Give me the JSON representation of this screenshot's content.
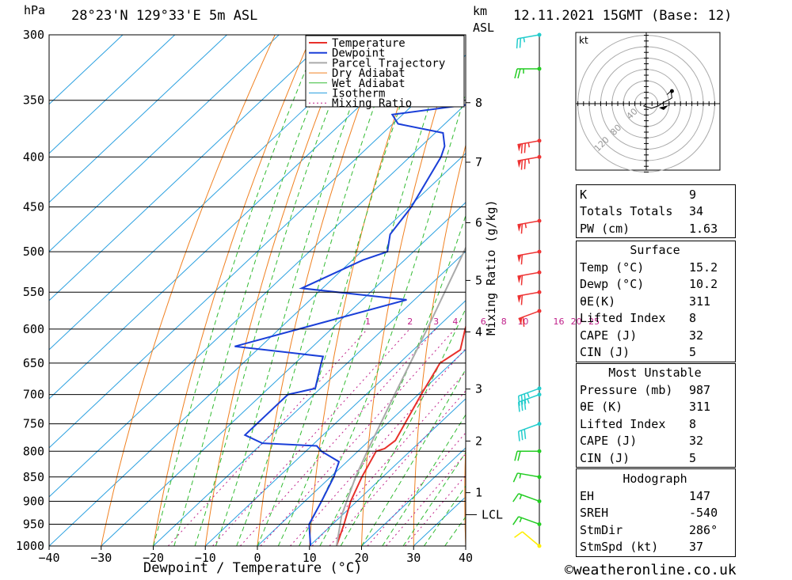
{
  "header": {
    "pressure_unit": "hPa",
    "location": "28°23'N  129°33'E  5m  ASL",
    "km_label": "km",
    "asl_label": "ASL",
    "datetime": "12.11.2021  15GMT  (Base: 12)"
  },
  "footer": {
    "copyright": "©weatheronline.co.uk"
  },
  "chart_data": {
    "type": "line",
    "title": "28°23'N 129°33'E 5m ASL",
    "xlabel": "Dewpoint / Temperature (°C)",
    "ylabel": "hPa",
    "y2label": "Mixing Ratio (g/kg)",
    "xlim": [
      -40,
      40
    ],
    "ylim": [
      1000,
      300
    ],
    "x_ticks": [
      "-40",
      "-30",
      "-20",
      "-10",
      "0",
      "10",
      "20",
      "30",
      "40"
    ],
    "y_ticks": [
      "300",
      "350",
      "400",
      "450",
      "500",
      "550",
      "600",
      "650",
      "700",
      "750",
      "800",
      "850",
      "900",
      "950",
      "1000"
    ],
    "km_ticks": [
      {
        "label": "8",
        "p": 352
      },
      {
        "label": "7",
        "p": 405
      },
      {
        "label": "6",
        "p": 467
      },
      {
        "label": "5",
        "p": 535
      },
      {
        "label": "4",
        "p": 604
      },
      {
        "label": "3",
        "p": 691
      },
      {
        "label": "2",
        "p": 781
      },
      {
        "label": "1",
        "p": 882
      }
    ],
    "lcl": {
      "label": "LCL",
      "p": 929
    },
    "mixing_ratio_labels": [
      "1",
      "2",
      "3",
      "4",
      "6",
      "8",
      "10",
      "16",
      "20",
      "25"
    ],
    "mixing_ratio_values": [
      1,
      2,
      3,
      4,
      6,
      8,
      10,
      16,
      20,
      25
    ],
    "legend": [
      "Temperature",
      "Dewpoint",
      "Parcel Trajectory",
      "Dry Adiabat",
      "Wet Adiabat",
      "Isotherm",
      "Mixing Ratio"
    ],
    "legend_position": "top-right",
    "colors": {
      "temperature": "#e8302a",
      "dewpoint": "#1a3fd8",
      "parcel": "#aaaaaa",
      "dry_adiabat": "#f08020",
      "wet_adiabat": "#33bb33",
      "isotherm": "#2aa0e0",
      "mixing_ratio": "#c0208a"
    },
    "series": [
      {
        "name": "Temperature",
        "points": [
          [
            1000,
            15.2
          ],
          [
            950,
            12.2
          ],
          [
            900,
            8.8
          ],
          [
            850,
            6.0
          ],
          [
            800,
            3.5
          ],
          [
            795,
            4.6
          ],
          [
            780,
            5.0
          ],
          [
            700,
            0.6
          ],
          [
            650,
            -2.2
          ],
          [
            630,
            -1.0
          ],
          [
            600,
            -4.3
          ],
          [
            550,
            -9.6
          ],
          [
            530,
            -9.0
          ],
          [
            500,
            -12.2
          ],
          [
            470,
            -13.8
          ],
          [
            450,
            -17.6
          ],
          [
            400,
            -25.4
          ],
          [
            380,
            -29.3
          ],
          [
            372,
            -28.6
          ],
          [
            365,
            -25.3
          ],
          [
            350,
            -27.0
          ],
          [
            320,
            -31.3
          ],
          [
            300,
            -36.0
          ]
        ]
      },
      {
        "name": "Dewpoint",
        "points": [
          [
            1000,
            10.2
          ],
          [
            950,
            5.5
          ],
          [
            900,
            3.2
          ],
          [
            850,
            0.6
          ],
          [
            820,
            -1.5
          ],
          [
            800,
            -7.0
          ],
          [
            790,
            -9.0
          ],
          [
            785,
            -20.0
          ],
          [
            770,
            -25.0
          ],
          [
            700,
            -25.0
          ],
          [
            690,
            -21.0
          ],
          [
            650,
            -25.0
          ],
          [
            640,
            -26.0
          ],
          [
            625,
            -45.0
          ],
          [
            560,
            -21.5
          ],
          [
            545,
            -44.0
          ],
          [
            510,
            -38.0
          ],
          [
            500,
            -35.0
          ],
          [
            480,
            -38.0
          ],
          [
            450,
            -39.5
          ],
          [
            400,
            -44.0
          ],
          [
            390,
            -45.5
          ],
          [
            378,
            -48.5
          ],
          [
            370,
            -59.0
          ],
          [
            362,
            -62.0
          ],
          [
            350,
            -44.0
          ],
          [
            320,
            -45.0
          ],
          [
            300,
            -51.0
          ]
        ]
      },
      {
        "name": "Parcel Trajectory",
        "points": [
          [
            1000,
            15.2
          ],
          [
            930,
            9.9
          ],
          [
            850,
            4.8
          ],
          [
            800,
            1.8
          ],
          [
            700,
            -4.5
          ],
          [
            600,
            -11.6
          ],
          [
            500,
            -20.3
          ],
          [
            400,
            -31.3
          ],
          [
            350,
            -39.0
          ],
          [
            300,
            -47.5
          ]
        ]
      }
    ],
    "wind_barbs": [
      {
        "p": 1000,
        "dir": 230,
        "speed": 10,
        "color": "#ffee00"
      },
      {
        "p": 950,
        "dir": 250,
        "speed": 15,
        "color": "#22cc22"
      },
      {
        "p": 900,
        "dir": 250,
        "speed": 15,
        "color": "#22cc22"
      },
      {
        "p": 850,
        "dir": 260,
        "speed": 15,
        "color": "#22cc22"
      },
      {
        "p": 800,
        "dir": 270,
        "speed": 20,
        "color": "#22cc22"
      },
      {
        "p": 750,
        "dir": 290,
        "speed": 30,
        "color": "#22cccc"
      },
      {
        "p": 700,
        "dir": 290,
        "speed": 35,
        "color": "#22cccc"
      },
      {
        "p": 690,
        "dir": 290,
        "speed": 35,
        "color": "#22cccc"
      },
      {
        "p": 575,
        "dir": 290,
        "speed": 60,
        "color": "#ee3333"
      },
      {
        "p": 550,
        "dir": 280,
        "speed": 60,
        "color": "#ee3333"
      },
      {
        "p": 525,
        "dir": 280,
        "speed": 60,
        "color": "#ee3333"
      },
      {
        "p": 500,
        "dir": 280,
        "speed": 60,
        "color": "#ee3333"
      },
      {
        "p": 465,
        "dir": 280,
        "speed": 65,
        "color": "#ee3333"
      },
      {
        "p": 400,
        "dir": 280,
        "speed": 75,
        "color": "#ee3333"
      },
      {
        "p": 385,
        "dir": 280,
        "speed": 75,
        "color": "#ee3333"
      },
      {
        "p": 325,
        "dir": 270,
        "speed": 25,
        "color": "#22cc22"
      },
      {
        "p": 300,
        "dir": 280,
        "speed": 25,
        "color": "#22cccc"
      }
    ]
  },
  "hodograph": {
    "unit": "kt",
    "ring_labels": [
      "40",
      "80",
      "120"
    ],
    "points": [
      [
        0,
        0
      ],
      [
        -3,
        -2
      ],
      [
        6,
        -4
      ],
      [
        14,
        -2
      ],
      [
        20,
        1
      ],
      [
        28,
        4
      ],
      [
        30,
        5
      ],
      [
        29,
        11
      ],
      [
        27,
        10
      ],
      [
        26,
        9
      ],
      [
        24,
        8
      ]
    ]
  },
  "indices": {
    "rows": [
      {
        "label": "K",
        "value": "9"
      },
      {
        "label": "Totals Totals",
        "value": "34"
      },
      {
        "label": "PW (cm)",
        "value": "1.63"
      }
    ]
  },
  "surface": {
    "title": "Surface",
    "rows": [
      {
        "label": "Temp (°C)",
        "value": "15.2"
      },
      {
        "label": "Dewp (°C)",
        "value": "10.2"
      },
      {
        "label": "θE(K)",
        "value": "311"
      },
      {
        "label": "Lifted Index",
        "value": "8"
      },
      {
        "label": "CAPE (J)",
        "value": "32"
      },
      {
        "label": "CIN (J)",
        "value": "5"
      }
    ]
  },
  "most_unstable": {
    "title": "Most Unstable",
    "rows": [
      {
        "label": "Pressure (mb)",
        "value": "987"
      },
      {
        "label": "θE (K)",
        "value": "311"
      },
      {
        "label": "Lifted Index",
        "value": "8"
      },
      {
        "label": "CAPE (J)",
        "value": "32"
      },
      {
        "label": "CIN (J)",
        "value": "5"
      }
    ]
  },
  "hodograph_table": {
    "title": "Hodograph",
    "rows": [
      {
        "label": "EH",
        "value": "147"
      },
      {
        "label": "SREH",
        "value": "-540"
      },
      {
        "label": "StmDir",
        "value": "286°"
      },
      {
        "label": "StmSpd (kt)",
        "value": "37"
      }
    ]
  }
}
